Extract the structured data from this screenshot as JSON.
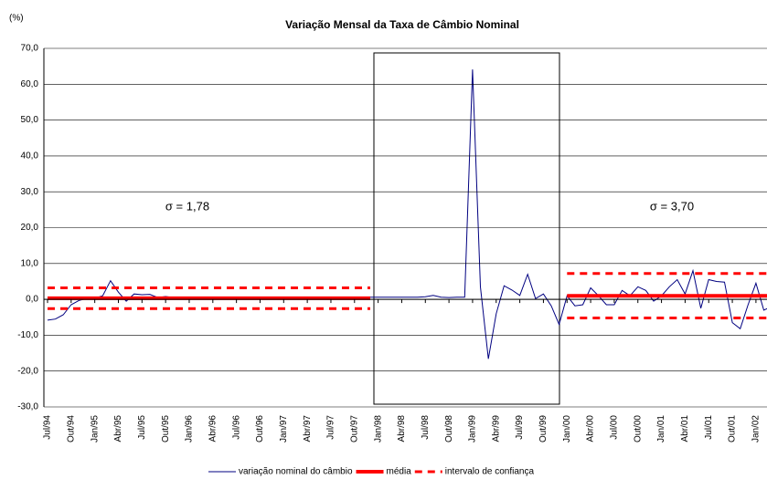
{
  "chart_data": {
    "type": "line",
    "title": "Variação Mensal da Taxa de Câmbio Nominal",
    "y_label": "(%)",
    "annotations": [
      "σ = 1,78",
      "σ = 3,70"
    ],
    "categories": [
      "Jul/94",
      null,
      null,
      "Out/94",
      null,
      null,
      "Jan/95",
      null,
      null,
      "Abr/95",
      null,
      null,
      "Jul/95",
      null,
      null,
      "Out/95",
      null,
      null,
      "Jan/96",
      null,
      null,
      "Abr/96",
      null,
      null,
      "Jul/96",
      null,
      null,
      "Out/96",
      null,
      null,
      "Jan/97",
      null,
      null,
      "Abr/97",
      null,
      null,
      "Jul/97",
      null,
      null,
      "Out/97",
      null,
      null,
      "Jan/98",
      null,
      null,
      "Abr/98",
      null,
      null,
      "Jul/98",
      null,
      null,
      "Out/98",
      null,
      null,
      "Jan/99",
      null,
      null,
      "Abr/99",
      null,
      null,
      "Jul/99",
      null,
      null,
      "Out/99",
      null,
      null,
      "Jan/00",
      null,
      null,
      "Abr/00",
      null,
      null,
      "Jul/00",
      null,
      null,
      "Out/00",
      null,
      null,
      "Jan/01",
      null,
      null,
      "Abr/01",
      null,
      null,
      "Jul/01",
      null,
      null,
      "Out/01",
      null,
      null,
      "Jan/02",
      null,
      null
    ],
    "series": [
      {
        "name": "variação nominal do câmbio",
        "color": "#000080",
        "width": 1,
        "dash": false,
        "values": [
          -5.8,
          -5.5,
          -4.3,
          -1.5,
          -0.3,
          0.2,
          0.3,
          1.0,
          5.2,
          2.0,
          -0.5,
          1.5,
          1.3,
          1.4,
          0.5,
          0.8,
          0.5,
          0.6,
          0.5,
          0.5,
          0.5,
          0.6,
          0.5,
          0.5,
          0.6,
          0.5,
          0.5,
          0.6,
          0.5,
          0.6,
          0.6,
          0.5,
          0.6,
          0.6,
          0.5,
          0.6,
          0.6,
          0.6,
          0.6,
          0.6,
          0.6,
          0.6,
          0.6,
          0.6,
          0.6,
          0.6,
          0.6,
          0.6,
          0.7,
          1.1,
          0.6,
          0.5,
          0.6,
          0.6,
          64.1,
          3.5,
          -16.6,
          -4.0,
          3.8,
          2.6,
          1.1,
          7.0,
          0.2,
          1.5,
          -1.8,
          -7.0,
          1.0,
          -1.8,
          -1.5,
          3.2,
          1.0,
          -1.5,
          -1.5,
          2.5,
          1.0,
          3.5,
          2.5,
          -0.5,
          1.0,
          3.5,
          5.5,
          1.5,
          8.0,
          -2.5,
          5.5,
          5.0,
          4.8,
          -6.5,
          -8.2,
          -1.5,
          4.5,
          -3.0,
          -2.0
        ]
      },
      {
        "name": "média",
        "color": "#ff0000",
        "width": 4,
        "dash": false,
        "values": [
          0.3,
          0.3,
          0.3,
          0.3,
          0.3,
          0.3,
          0.3,
          0.3,
          0.3,
          0.3,
          0.3,
          0.3,
          0.3,
          0.3,
          0.3,
          0.3,
          0.3,
          0.3,
          0.3,
          0.3,
          0.3,
          0.3,
          0.3,
          0.3,
          0.3,
          0.3,
          0.3,
          0.3,
          0.3,
          0.3,
          0.3,
          0.3,
          0.3,
          0.3,
          0.3,
          0.3,
          0.3,
          0.3,
          0.3,
          0.3,
          0.3,
          0.3,
          null,
          null,
          null,
          null,
          null,
          null,
          null,
          null,
          null,
          null,
          null,
          null,
          null,
          null,
          null,
          null,
          null,
          null,
          null,
          null,
          null,
          null,
          null,
          null,
          1.0,
          1.0,
          1.0,
          1.0,
          1.0,
          1.0,
          1.0,
          1.0,
          1.0,
          1.0,
          1.0,
          1.0,
          1.0,
          1.0,
          1.0,
          1.0,
          1.0,
          1.0,
          1.0,
          1.0,
          1.0,
          1.0,
          1.0,
          1.0,
          1.0,
          1.0,
          1.0
        ]
      },
      {
        "name": "intervalo de confiança",
        "color": "#ff0000",
        "width": 3,
        "dash": true,
        "values": [
          3.2,
          3.2,
          3.2,
          3.2,
          3.2,
          3.2,
          3.2,
          3.2,
          3.2,
          3.2,
          3.2,
          3.2,
          3.2,
          3.2,
          3.2,
          3.2,
          3.2,
          3.2,
          3.2,
          3.2,
          3.2,
          3.2,
          3.2,
          3.2,
          3.2,
          3.2,
          3.2,
          3.2,
          3.2,
          3.2,
          3.2,
          3.2,
          3.2,
          3.2,
          3.2,
          3.2,
          3.2,
          3.2,
          3.2,
          3.2,
          3.2,
          3.2,
          null,
          null,
          null,
          null,
          null,
          null,
          null,
          null,
          null,
          null,
          null,
          null,
          null,
          null,
          null,
          null,
          null,
          null,
          null,
          null,
          null,
          null,
          null,
          null,
          7.2,
          7.2,
          7.2,
          7.2,
          7.2,
          7.2,
          7.2,
          7.2,
          7.2,
          7.2,
          7.2,
          7.2,
          7.2,
          7.2,
          7.2,
          7.2,
          7.2,
          7.2,
          7.2,
          7.2,
          7.2,
          7.2,
          7.2,
          7.2,
          7.2,
          7.2,
          7.2
        ],
        "lower": [
          -2.6,
          -2.6,
          -2.6,
          -2.6,
          -2.6,
          -2.6,
          -2.6,
          -2.6,
          -2.6,
          -2.6,
          -2.6,
          -2.6,
          -2.6,
          -2.6,
          -2.6,
          -2.6,
          -2.6,
          -2.6,
          -2.6,
          -2.6,
          -2.6,
          -2.6,
          -2.6,
          -2.6,
          -2.6,
          -2.6,
          -2.6,
          -2.6,
          -2.6,
          -2.6,
          -2.6,
          -2.6,
          -2.6,
          -2.6,
          -2.6,
          -2.6,
          -2.6,
          -2.6,
          -2.6,
          -2.6,
          -2.6,
          -2.6,
          null,
          null,
          null,
          null,
          null,
          null,
          null,
          null,
          null,
          null,
          null,
          null,
          null,
          null,
          null,
          null,
          null,
          null,
          null,
          null,
          null,
          null,
          null,
          null,
          -5.2,
          -5.2,
          -5.2,
          -5.2,
          -5.2,
          -5.2,
          -5.2,
          -5.2,
          -5.2,
          -5.2,
          -5.2,
          -5.2,
          -5.2,
          -5.2,
          -5.2,
          -5.2,
          -5.2,
          -5.2,
          -5.2,
          -5.2,
          -5.2,
          -5.2,
          -5.2,
          -5.2,
          -5.2,
          -5.2,
          -5.2
        ]
      }
    ],
    "ylim": [
      -30,
      70
    ],
    "yticks": [
      {
        "value": -30,
        "label": "-30,0"
      },
      {
        "value": -20,
        "label": "-20,0"
      },
      {
        "value": -10,
        "label": "-10,0"
      },
      {
        "value": 0,
        "label": "0,0"
      },
      {
        "value": 10,
        "label": "10,0"
      },
      {
        "value": 20,
        "label": "20,0"
      },
      {
        "value": 30,
        "label": "30,0"
      },
      {
        "value": 40,
        "label": "40,0"
      },
      {
        "value": 50,
        "label": "50,0"
      },
      {
        "value": 60,
        "label": "60,0"
      },
      {
        "value": 70,
        "label": "70,0"
      }
    ],
    "grid": true,
    "legend": "bottom"
  }
}
